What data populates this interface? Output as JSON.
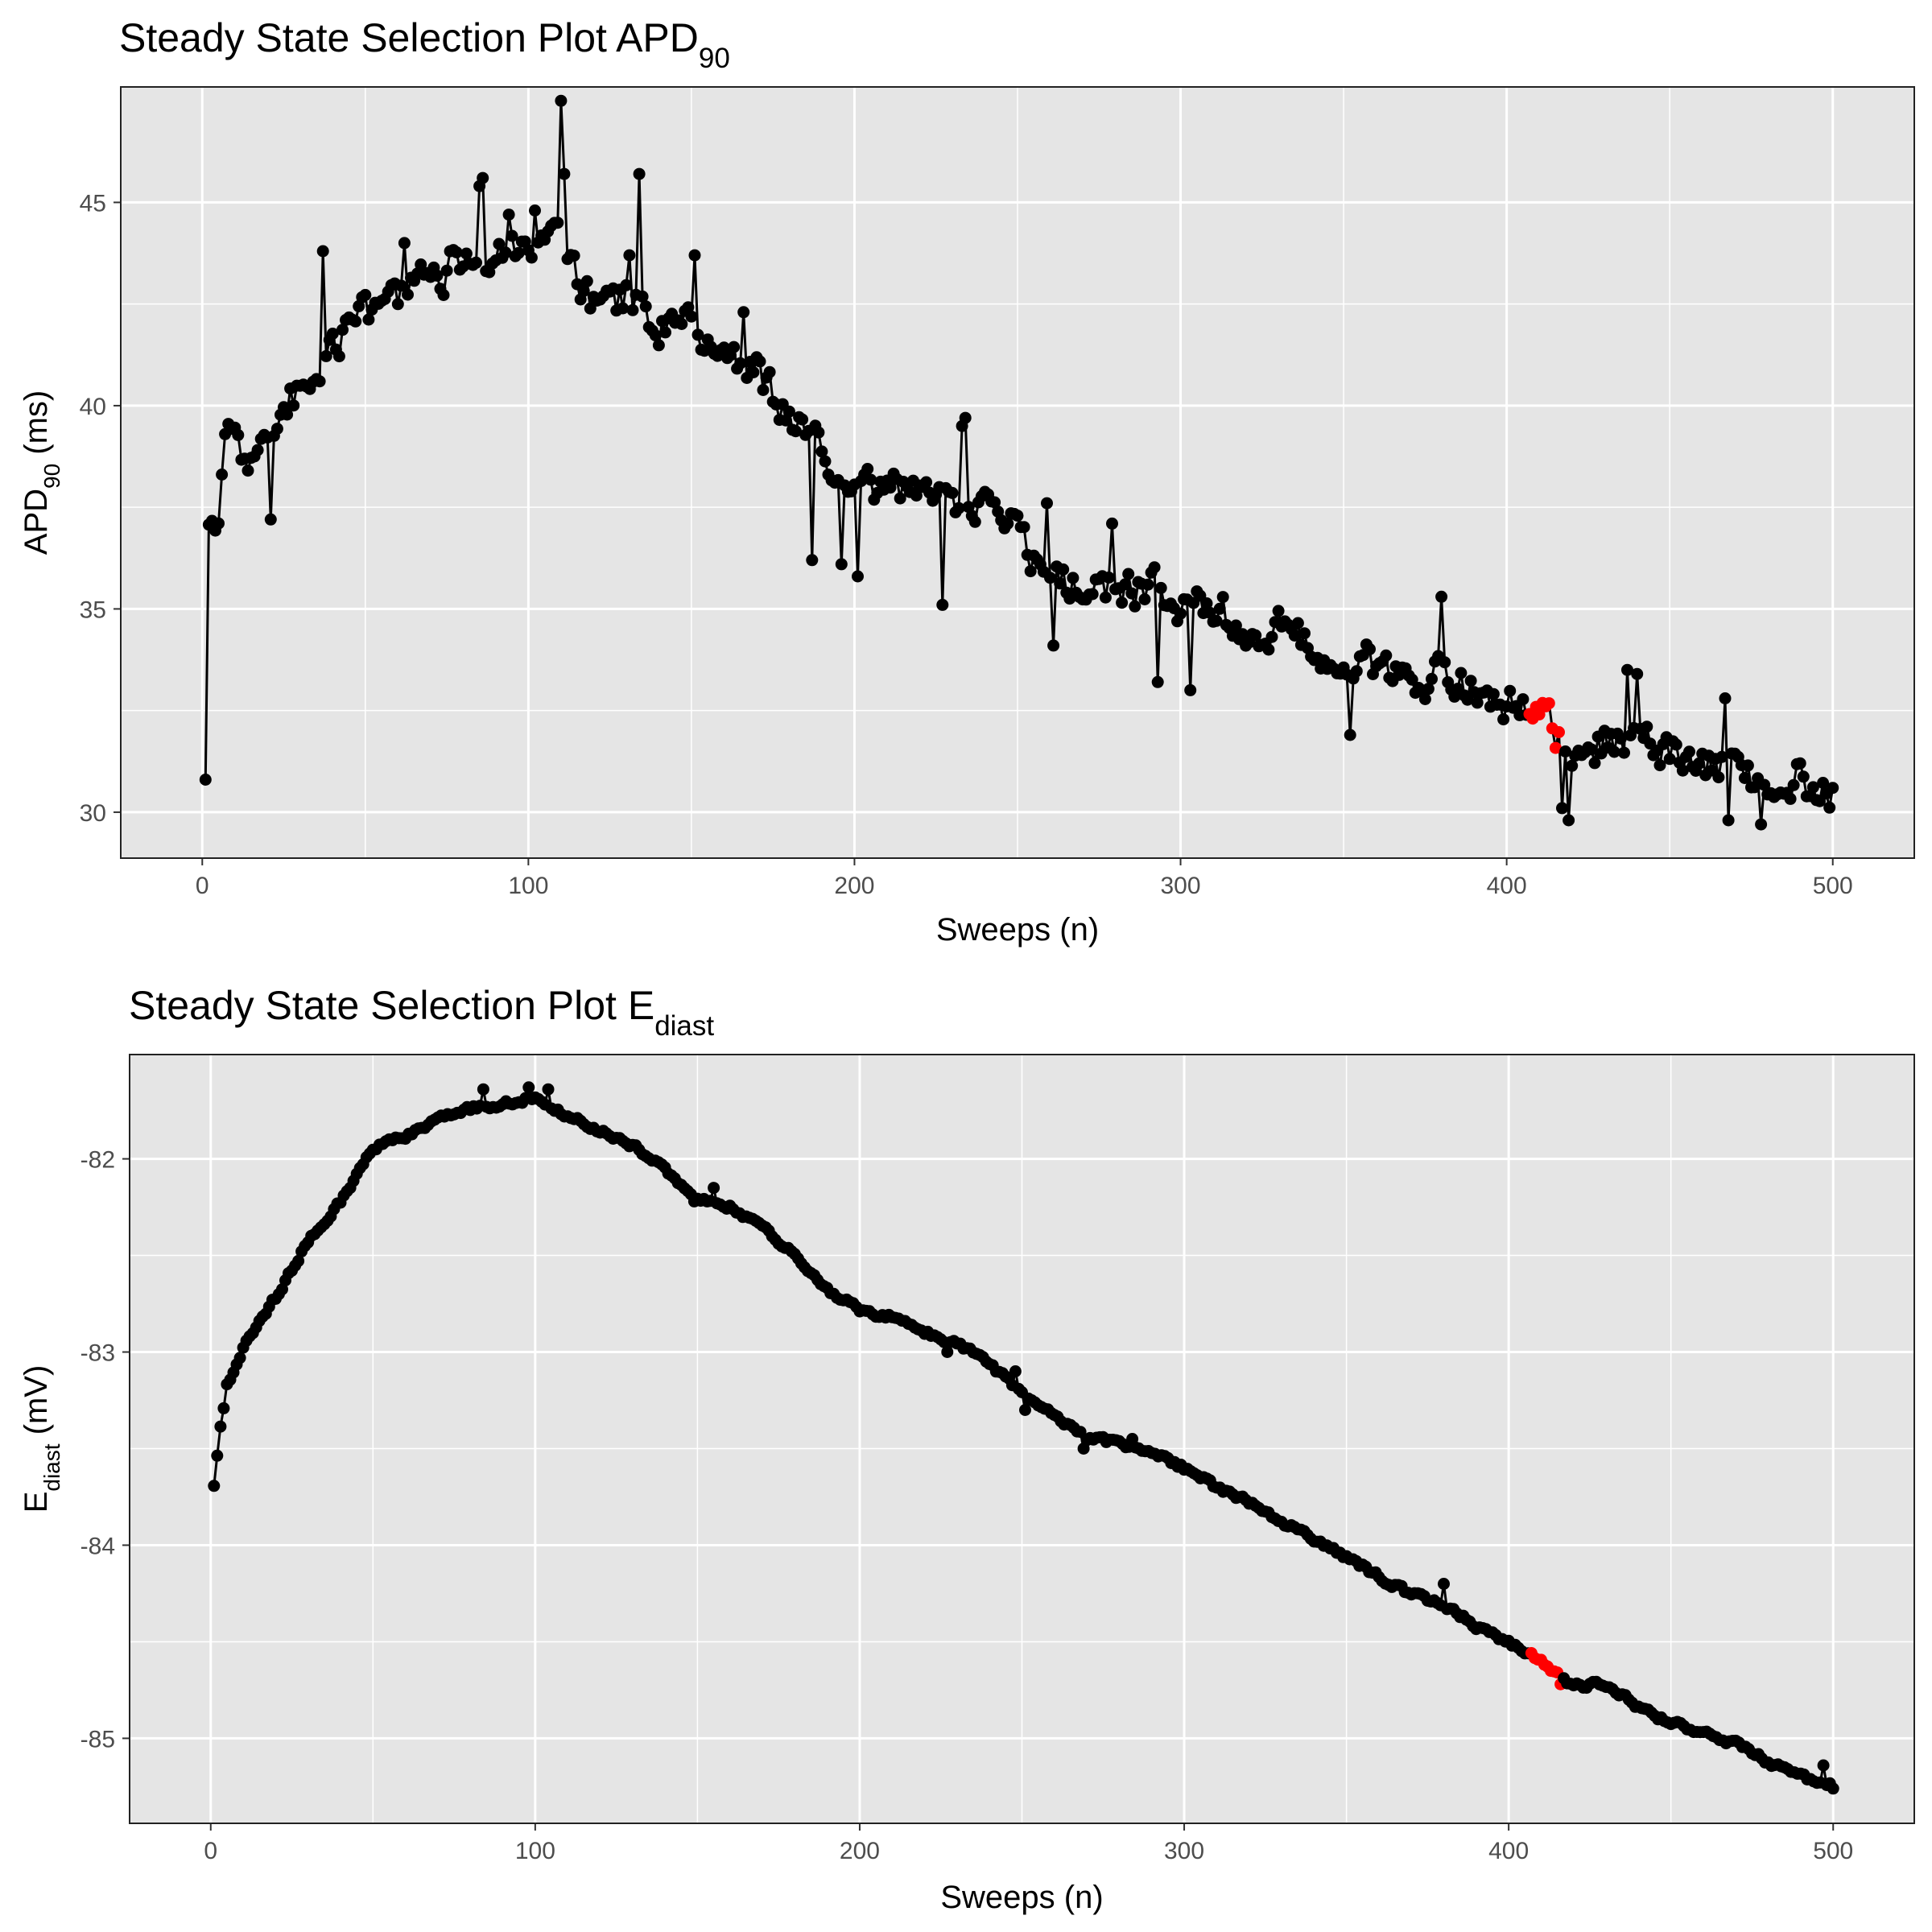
{
  "colors": {
    "panel_background": "#e5e5e5",
    "grid_line": "#ffffff",
    "series": "#000000",
    "highlight": "#ff0000"
  },
  "chart_data": [
    {
      "type": "line",
      "title": {
        "main": "Steady State Selection Plot APD",
        "sub": "90"
      },
      "xlabel": "Sweeps (n)",
      "ylabel": {
        "main": "APD",
        "sub": "90",
        "tail": " (ms)"
      },
      "xlim": [
        -25,
        525
      ],
      "ylim": [
        28.87,
        47.84
      ],
      "xticks": [
        0,
        100,
        200,
        300,
        400,
        500
      ],
      "xtick_labels": [
        "0",
        "100",
        "200",
        "300",
        "400",
        "500"
      ],
      "yticks": [
        30,
        35,
        40,
        45
      ],
      "ytick_labels": [
        "30",
        "35",
        "40",
        "45"
      ],
      "grid": true,
      "markers": "points connected by line",
      "highlight_range": [
        407,
        416
      ],
      "anchors": [
        [
          1,
          30.8
        ],
        [
          2,
          36.8
        ],
        [
          5,
          37.2
        ],
        [
          8,
          39.6
        ],
        [
          12,
          38.5
        ],
        [
          20,
          39.3
        ],
        [
          30,
          40.5
        ],
        [
          40,
          41.5
        ],
        [
          50,
          42.2
        ],
        [
          60,
          42.7
        ],
        [
          70,
          43.1
        ],
        [
          80,
          43.6
        ],
        [
          90,
          43.9
        ],
        [
          100,
          43.7
        ],
        [
          110,
          43.9
        ],
        [
          120,
          42.4
        ],
        [
          130,
          42.7
        ],
        [
          140,
          42.0
        ],
        [
          150,
          42.0
        ],
        [
          160,
          41.2
        ],
        [
          170,
          40.8
        ],
        [
          180,
          39.8
        ],
        [
          190,
          38.9
        ],
        [
          200,
          38.3
        ],
        [
          210,
          37.9
        ],
        [
          220,
          37.8
        ],
        [
          230,
          37.5
        ],
        [
          240,
          37.3
        ],
        [
          250,
          36.8
        ],
        [
          260,
          35.7
        ],
        [
          270,
          35.4
        ],
        [
          280,
          35.6
        ],
        [
          290,
          35.5
        ],
        [
          300,
          35.1
        ],
        [
          310,
          34.9
        ],
        [
          320,
          34.6
        ],
        [
          330,
          34.5
        ],
        [
          340,
          34.1
        ],
        [
          350,
          33.7
        ],
        [
          360,
          33.6
        ],
        [
          370,
          33.4
        ],
        [
          380,
          33.3
        ],
        [
          390,
          33.0
        ],
        [
          400,
          32.6
        ],
        [
          410,
          32.4
        ],
        [
          420,
          31.6
        ],
        [
          430,
          31.7
        ],
        [
          440,
          31.7
        ],
        [
          450,
          31.4
        ],
        [
          460,
          31.2
        ],
        [
          470,
          31.0
        ],
        [
          480,
          30.8
        ],
        [
          490,
          30.9
        ],
        [
          500,
          30.3
        ]
      ],
      "noise_amplitude": 0.75,
      "spikes": [
        [
          110,
          47.5
        ],
        [
          111,
          45.7
        ],
        [
          134,
          45.7
        ],
        [
          86,
          45.6
        ],
        [
          85,
          45.4
        ],
        [
          102,
          44.8
        ],
        [
          94,
          44.7
        ],
        [
          37,
          43.8
        ],
        [
          62,
          44.0
        ],
        [
          109,
          44.5
        ],
        [
          131,
          43.7
        ],
        [
          151,
          43.7
        ],
        [
          166,
          42.3
        ],
        [
          234,
          39.7
        ],
        [
          233,
          39.5
        ],
        [
          259,
          37.6
        ],
        [
          279,
          37.1
        ],
        [
          380,
          35.3
        ],
        [
          187,
          36.2
        ],
        [
          196,
          36.1
        ],
        [
          201,
          35.8
        ],
        [
          227,
          35.1
        ],
        [
          261,
          34.1
        ],
        [
          293,
          33.2
        ],
        [
          303,
          33.0
        ],
        [
          352,
          31.9
        ],
        [
          417,
          30.1
        ],
        [
          419,
          29.8
        ],
        [
          468,
          29.8
        ],
        [
          478,
          29.7
        ],
        [
          467,
          32.8
        ],
        [
          437,
          33.5
        ],
        [
          440,
          33.4
        ],
        [
          21,
          37.2
        ],
        [
          1,
          30.8
        ]
      ]
    },
    {
      "type": "line",
      "title": {
        "main": "Steady State Selection Plot E",
        "sub": "diast"
      },
      "xlabel": "Sweeps (n)",
      "ylabel": {
        "main": "E",
        "sub": "diast",
        "tail": " (mV)"
      },
      "xlim": [
        -25,
        525
      ],
      "ylim": [
        -85.44,
        -81.46
      ],
      "xticks": [
        0,
        100,
        200,
        300,
        400,
        500
      ],
      "xtick_labels": [
        "0",
        "100",
        "200",
        "300",
        "400",
        "500"
      ],
      "yticks": [
        -85,
        -84,
        -83,
        -82
      ],
      "ytick_labels": [
        "-85",
        "-84",
        "-83",
        "-82"
      ],
      "grid": true,
      "markers": "points connected by line",
      "highlight_range": [
        407,
        416
      ],
      "anchors": [
        [
          1,
          -83.69
        ],
        [
          3,
          -83.4
        ],
        [
          5,
          -83.18
        ],
        [
          10,
          -82.98
        ],
        [
          20,
          -82.72
        ],
        [
          30,
          -82.42
        ],
        [
          40,
          -82.22
        ],
        [
          50,
          -81.95
        ],
        [
          60,
          -81.88
        ],
        [
          70,
          -81.8
        ],
        [
          80,
          -81.74
        ],
        [
          90,
          -81.72
        ],
        [
          100,
          -81.68
        ],
        [
          110,
          -81.78
        ],
        [
          120,
          -81.85
        ],
        [
          130,
          -81.93
        ],
        [
          140,
          -82.05
        ],
        [
          150,
          -82.2
        ],
        [
          160,
          -82.25
        ],
        [
          170,
          -82.35
        ],
        [
          180,
          -82.5
        ],
        [
          190,
          -82.68
        ],
        [
          200,
          -82.78
        ],
        [
          210,
          -82.82
        ],
        [
          220,
          -82.9
        ],
        [
          230,
          -82.96
        ],
        [
          240,
          -83.06
        ],
        [
          250,
          -83.22
        ],
        [
          260,
          -83.33
        ],
        [
          270,
          -83.45
        ],
        [
          280,
          -83.47
        ],
        [
          290,
          -83.52
        ],
        [
          300,
          -83.6
        ],
        [
          310,
          -83.7
        ],
        [
          320,
          -83.78
        ],
        [
          330,
          -83.88
        ],
        [
          340,
          -83.97
        ],
        [
          350,
          -84.06
        ],
        [
          360,
          -84.16
        ],
        [
          370,
          -84.26
        ],
        [
          380,
          -84.3
        ],
        [
          390,
          -84.42
        ],
        [
          400,
          -84.5
        ],
        [
          410,
          -84.6
        ],
        [
          420,
          -84.73
        ],
        [
          430,
          -84.72
        ],
        [
          440,
          -84.84
        ],
        [
          450,
          -84.92
        ],
        [
          460,
          -84.97
        ],
        [
          470,
          -85.03
        ],
        [
          480,
          -85.12
        ],
        [
          490,
          -85.2
        ],
        [
          500,
          -85.25
        ]
      ],
      "noise_amplitude": 0.025,
      "spikes": [
        [
          84,
          -81.64
        ],
        [
          98,
          -81.63
        ],
        [
          104,
          -81.64
        ],
        [
          149,
          -82.22
        ],
        [
          155,
          -82.15
        ],
        [
          227,
          -83.0
        ],
        [
          248,
          -83.1
        ],
        [
          251,
          -83.3
        ],
        [
          269,
          -83.5
        ],
        [
          284,
          -83.45
        ],
        [
          380,
          -84.2
        ],
        [
          416,
          -84.72
        ],
        [
          497,
          -85.14
        ],
        [
          500,
          -85.26
        ]
      ]
    }
  ]
}
